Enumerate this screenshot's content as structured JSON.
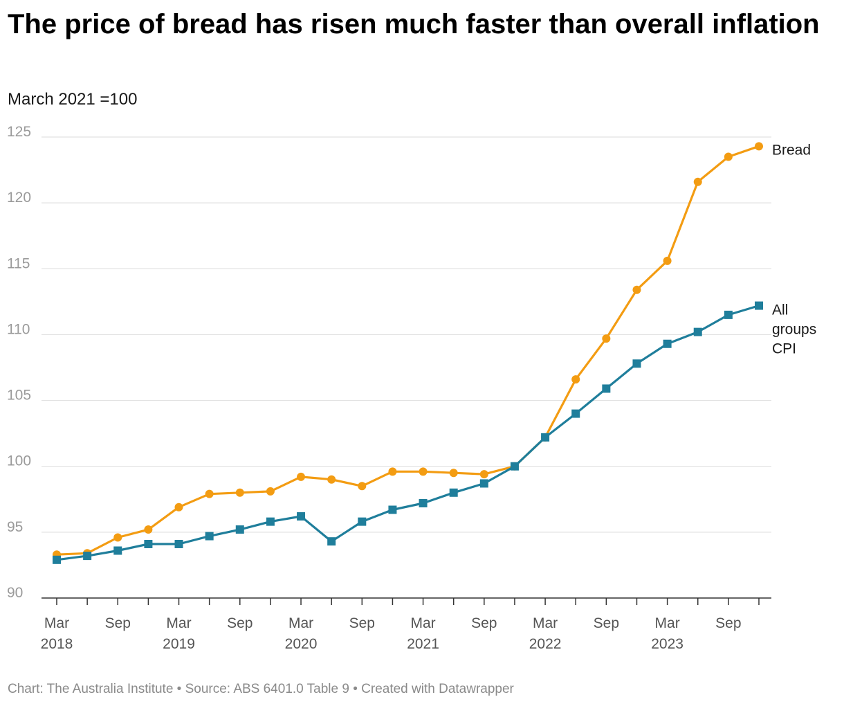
{
  "title": "The price of bread has risen much faster than overall inflation",
  "subtitle": "March 2021 =100",
  "footer": {
    "chart_by": "Chart: The Australia Institute",
    "source": "Source: ABS 6401.0 Table 9",
    "created_with": "Created with Datawrapper",
    "separator": "•"
  },
  "chart_data": {
    "type": "line",
    "title": "The price of bread has risen much faster than overall inflation",
    "subtitle": "March 2021 =100",
    "xlabel": "",
    "ylabel": "",
    "ylim": [
      90,
      125
    ],
    "yticks": [
      90,
      95,
      100,
      105,
      110,
      115,
      120,
      125
    ],
    "grid": true,
    "legend": "direct labels at right end of lines",
    "x": [
      "Mar 2018",
      "Jun 2018",
      "Sep 2018",
      "Dec 2018",
      "Mar 2019",
      "Jun 2019",
      "Sep 2019",
      "Dec 2019",
      "Mar 2020",
      "Jun 2020",
      "Sep 2020",
      "Dec 2020",
      "Mar 2021",
      "Jun 2021",
      "Sep 2021",
      "Dec 2021",
      "Mar 2022",
      "Jun 2022",
      "Sep 2022",
      "Dec 2022",
      "Mar 2023",
      "Jun 2023",
      "Sep 2023",
      "Dec 2023"
    ],
    "xtick_labels": [
      {
        "month": "Mar",
        "year": "2018",
        "index": 0
      },
      {
        "month": "Sep",
        "year": "",
        "index": 2
      },
      {
        "month": "Mar",
        "year": "2019",
        "index": 4
      },
      {
        "month": "Sep",
        "year": "",
        "index": 6
      },
      {
        "month": "Mar",
        "year": "2020",
        "index": 8
      },
      {
        "month": "Sep",
        "year": "",
        "index": 10
      },
      {
        "month": "Mar",
        "year": "2021",
        "index": 12
      },
      {
        "month": "Sep",
        "year": "",
        "index": 14
      },
      {
        "month": "Mar",
        "year": "2022",
        "index": 16
      },
      {
        "month": "Sep",
        "year": "",
        "index": 18
      },
      {
        "month": "Mar",
        "year": "2023",
        "index": 20
      },
      {
        "month": "Sep",
        "year": "",
        "index": 22
      }
    ],
    "series": [
      {
        "name": "Bread",
        "label_lines": [
          "Bread"
        ],
        "color": "#f39c12",
        "marker": "circle",
        "values": [
          93.3,
          93.4,
          94.6,
          95.2,
          96.9,
          97.9,
          98.0,
          98.1,
          99.2,
          99.0,
          98.5,
          99.6,
          99.6,
          99.5,
          99.4,
          100.0,
          102.2,
          106.6,
          109.7,
          113.4,
          115.6,
          121.6,
          123.5,
          124.3
        ]
      },
      {
        "name": "All groups CPI",
        "label_lines": [
          "All",
          "groups",
          "CPI"
        ],
        "color": "#1f7e9b",
        "marker": "square",
        "values": [
          92.9,
          93.2,
          93.6,
          94.1,
          94.1,
          94.7,
          95.2,
          95.8,
          96.2,
          94.3,
          95.8,
          96.7,
          97.2,
          98.0,
          98.7,
          100.0,
          102.2,
          104.0,
          105.9,
          107.8,
          109.3,
          110.2,
          111.5,
          112.2
        ]
      }
    ]
  }
}
